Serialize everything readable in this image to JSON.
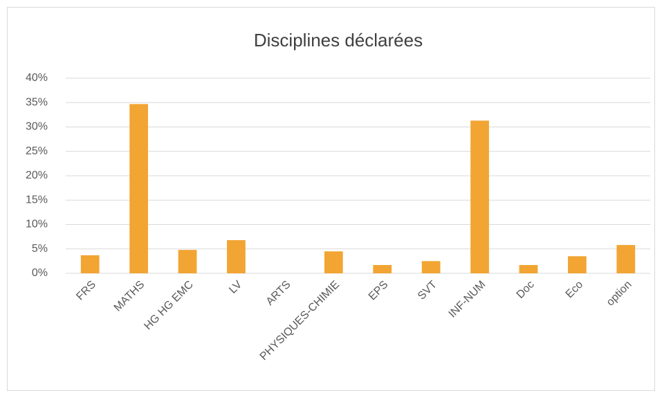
{
  "chart_data": {
    "type": "bar",
    "title": "Disciplines déclarées",
    "categories": [
      "FRS",
      "MATHS",
      "HG HG EMC",
      "LV",
      "ARTS",
      "PHYSIQUES-CHIMIE",
      "EPS",
      "SVT",
      "INF-NUM",
      "Doc",
      "Eco",
      "option"
    ],
    "values": [
      3.7,
      34.7,
      4.8,
      6.8,
      0,
      4.5,
      1.7,
      2.5,
      31.3,
      1.7,
      3.5,
      5.8
    ],
    "color": "#f2a533",
    "ylim": [
      0,
      40
    ],
    "yticks": [
      {
        "value": 0,
        "label": "0%"
      },
      {
        "value": 5,
        "label": "5%"
      },
      {
        "value": 10,
        "label": "10%"
      },
      {
        "value": 15,
        "label": "15%"
      },
      {
        "value": 20,
        "label": "20%"
      },
      {
        "value": 25,
        "label": "25%"
      },
      {
        "value": 30,
        "label": "30%"
      },
      {
        "value": 35,
        "label": "35%"
      },
      {
        "value": 40,
        "label": "40%"
      }
    ],
    "grid": true
  }
}
